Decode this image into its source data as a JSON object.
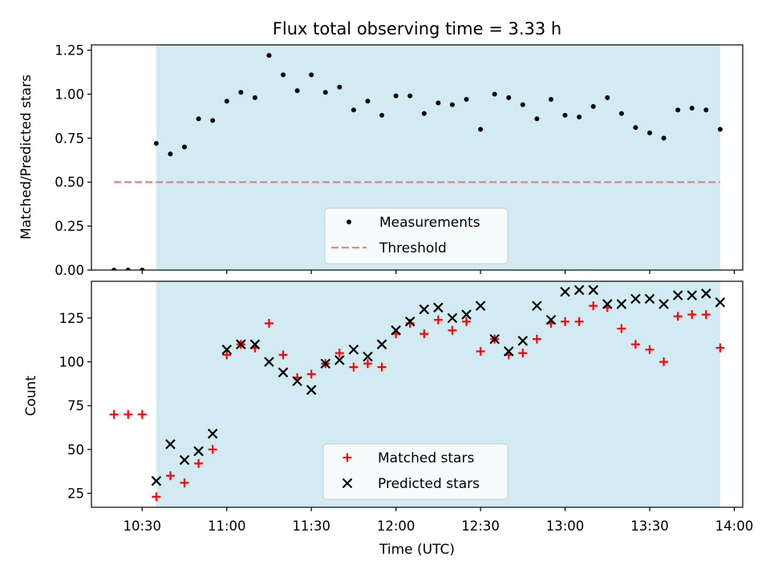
{
  "title": "Flux total observing time = 3.33 h",
  "colors": {
    "span": "#add8e6",
    "threshold": "#f08080",
    "measurement": "#000000",
    "matched": "#ff0000",
    "predicted": "#000000"
  },
  "chart_data": [
    {
      "type": "scatter",
      "panel": "top",
      "ylabel": "Matched/Predicted stars",
      "ylim": [
        0.0,
        1.28
      ],
      "yticks": [
        "0.00",
        "0.25",
        "0.50",
        "0.75",
        "1.00",
        "1.25"
      ],
      "shaded_span": [
        "10:35",
        "13:55"
      ],
      "legend_position": "lower center",
      "series": [
        {
          "name": "Measurements",
          "marker": "dot",
          "x": [
            "10:20",
            "10:25",
            "10:30",
            "10:35",
            "10:40",
            "10:45",
            "10:50",
            "10:55",
            "11:00",
            "11:05",
            "11:10",
            "11:15",
            "11:20",
            "11:25",
            "11:30",
            "11:35",
            "11:40",
            "11:45",
            "11:50",
            "11:55",
            "12:00",
            "12:05",
            "12:10",
            "12:15",
            "12:20",
            "12:25",
            "12:30",
            "12:35",
            "12:40",
            "12:45",
            "12:50",
            "12:55",
            "13:00",
            "13:05",
            "13:10",
            "13:15",
            "13:20",
            "13:25",
            "13:30",
            "13:35",
            "13:40",
            "13:45",
            "13:50",
            "13:55"
          ],
          "y": [
            0.0,
            0.0,
            0.0,
            0.72,
            0.66,
            0.7,
            0.86,
            0.85,
            0.96,
            1.01,
            0.98,
            1.22,
            1.11,
            1.02,
            1.11,
            1.01,
            1.04,
            0.91,
            0.96,
            0.88,
            0.99,
            0.99,
            0.89,
            0.95,
            0.94,
            0.97,
            0.8,
            1.0,
            0.98,
            0.94,
            0.86,
            0.97,
            0.88,
            0.87,
            0.93,
            0.98,
            0.89,
            0.81,
            0.78,
            0.75,
            0.91,
            0.92,
            0.91,
            0.8
          ]
        },
        {
          "name": "Threshold",
          "marker": "dashed-line",
          "x": [
            "10:20",
            "13:55"
          ],
          "y": [
            0.5,
            0.5
          ]
        }
      ]
    },
    {
      "type": "scatter",
      "panel": "bottom",
      "ylabel": "Count",
      "xlabel": "Time (UTC)",
      "ylim": [
        17,
        146
      ],
      "yticks": [
        "25",
        "50",
        "75",
        "100",
        "125"
      ],
      "xticks": [
        "10:30",
        "11:00",
        "11:30",
        "12:00",
        "12:30",
        "13:00",
        "13:30",
        "14:00"
      ],
      "shaded_span": [
        "10:35",
        "13:55"
      ],
      "legend_position": "lower center",
      "series": [
        {
          "name": "Matched stars",
          "marker": "plus",
          "x": [
            "10:20",
            "10:25",
            "10:30",
            "10:35",
            "10:40",
            "10:45",
            "10:50",
            "10:55",
            "11:00",
            "11:05",
            "11:10",
            "11:15",
            "11:20",
            "11:25",
            "11:30",
            "11:35",
            "11:40",
            "11:45",
            "11:50",
            "11:55",
            "12:00",
            "12:05",
            "12:10",
            "12:15",
            "12:20",
            "12:25",
            "12:30",
            "12:35",
            "12:40",
            "12:45",
            "12:50",
            "12:55",
            "13:00",
            "13:05",
            "13:10",
            "13:15",
            "13:20",
            "13:25",
            "13:30",
            "13:35",
            "13:40",
            "13:45",
            "13:50",
            "13:55"
          ],
          "y": [
            70,
            70,
            70,
            23,
            35,
            31,
            42,
            50,
            104,
            110,
            108,
            122,
            104,
            91,
            93,
            99,
            105,
            97,
            99,
            97,
            116,
            122,
            116,
            124,
            118,
            123,
            106,
            113,
            104,
            105,
            113,
            122,
            123,
            123,
            132,
            131,
            119,
            110,
            107,
            100,
            126,
            127,
            127,
            108
          ]
        },
        {
          "name": "Predicted stars",
          "marker": "x",
          "x": [
            "10:35",
            "10:40",
            "10:45",
            "10:50",
            "10:55",
            "11:00",
            "11:05",
            "11:10",
            "11:15",
            "11:20",
            "11:25",
            "11:30",
            "11:35",
            "11:40",
            "11:45",
            "11:50",
            "11:55",
            "12:00",
            "12:05",
            "12:10",
            "12:15",
            "12:20",
            "12:25",
            "12:30",
            "12:35",
            "12:40",
            "12:45",
            "12:50",
            "12:55",
            "13:00",
            "13:05",
            "13:10",
            "13:15",
            "13:20",
            "13:25",
            "13:30",
            "13:35",
            "13:40",
            "13:45",
            "13:50",
            "13:55"
          ],
          "y": [
            32,
            53,
            44,
            49,
            59,
            107,
            110,
            110,
            100,
            94,
            89,
            84,
            99,
            101,
            107,
            103,
            110,
            118,
            123,
            130,
            131,
            125,
            127,
            132,
            113,
            106,
            112,
            132,
            124,
            140,
            141,
            141,
            133,
            133,
            136,
            136,
            133,
            138,
            138,
            139,
            134
          ]
        }
      ]
    }
  ]
}
